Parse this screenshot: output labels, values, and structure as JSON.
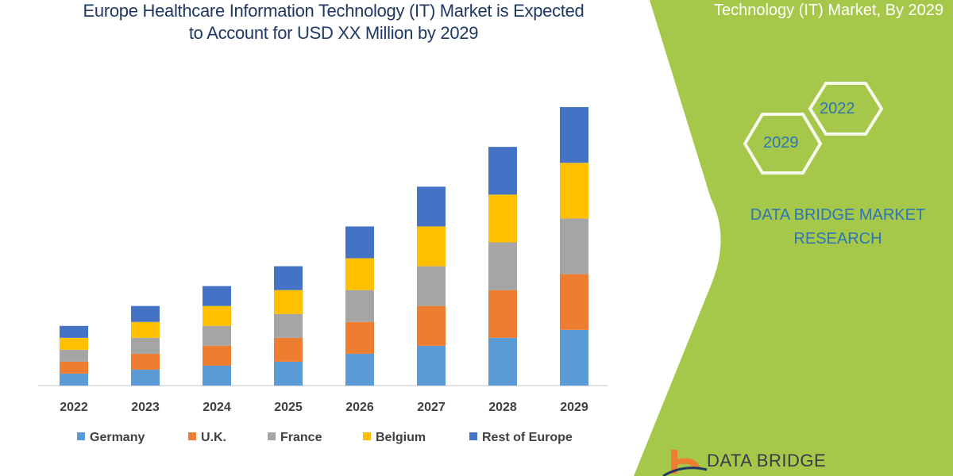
{
  "title_line1": "Europe Healthcare Information Technology (IT) Market is Expected",
  "title_line2": "to Account for USD XX Million by 2029",
  "side_panel": {
    "title": "Technology (IT) Market, By 2029",
    "hex_years": [
      "2022",
      "2029"
    ],
    "brand_line1": "DATA BRIDGE MARKET",
    "brand_line2": "RESEARCH",
    "logo_text": "DATA BRIDGE",
    "watermark": "DATA BRIDGE",
    "watermark_sub": "MARKET RESEARCH",
    "panel_color": "#a5c74a"
  },
  "chart_data": {
    "type": "bar",
    "stacked": true,
    "categories": [
      "2022",
      "2023",
      "2024",
      "2025",
      "2026",
      "2027",
      "2028",
      "2029"
    ],
    "series": [
      {
        "name": "Germany",
        "color": "#5b9bd5",
        "values": [
          15,
          20,
          25,
          30,
          40,
          50,
          60,
          70
        ]
      },
      {
        "name": "U.K.",
        "color": "#ed7d31",
        "values": [
          15,
          20,
          25,
          30,
          40,
          50,
          60,
          70
        ]
      },
      {
        "name": "France",
        "color": "#a5a5a5",
        "values": [
          15,
          20,
          25,
          30,
          40,
          50,
          60,
          70
        ]
      },
      {
        "name": "Belgium",
        "color": "#ffc000",
        "values": [
          15,
          20,
          25,
          30,
          40,
          50,
          60,
          70
        ]
      },
      {
        "name": "Rest of Europe",
        "color": "#4472c4",
        "values": [
          15,
          20,
          25,
          30,
          40,
          50,
          60,
          70
        ]
      }
    ],
    "ylim": [
      0,
      350
    ],
    "y_axis_shown": false,
    "grid": false,
    "legend_position": "bottom"
  }
}
